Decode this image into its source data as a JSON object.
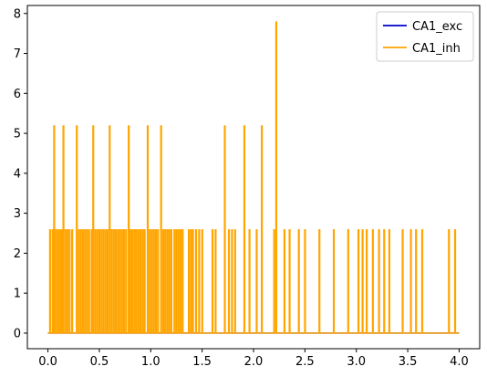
{
  "chart_data": {
    "type": "line",
    "title": "",
    "xlabel": "",
    "ylabel": "",
    "xlim": [
      -0.2,
      4.2
    ],
    "ylim": [
      -0.39,
      8.2
    ],
    "grid": false,
    "legend_placement": "top-right",
    "x_ticks": [
      {
        "value": 0.0,
        "label": "0.0"
      },
      {
        "value": 0.5,
        "label": "0.5"
      },
      {
        "value": 1.0,
        "label": "1.0"
      },
      {
        "value": 1.5,
        "label": "1.5"
      },
      {
        "value": 2.0,
        "label": "2.0"
      },
      {
        "value": 2.5,
        "label": "2.5"
      },
      {
        "value": 3.0,
        "label": "3.0"
      },
      {
        "value": 3.5,
        "label": "3.5"
      },
      {
        "value": 4.0,
        "label": "4.0"
      }
    ],
    "y_ticks": [
      {
        "value": 0,
        "label": "0"
      },
      {
        "value": 1,
        "label": "1"
      },
      {
        "value": 2,
        "label": "2"
      },
      {
        "value": 3,
        "label": "3"
      },
      {
        "value": 4,
        "label": "4"
      },
      {
        "value": 5,
        "label": "5"
      },
      {
        "value": 6,
        "label": "6"
      },
      {
        "value": 7,
        "label": "7"
      },
      {
        "value": 8,
        "label": "8"
      }
    ],
    "series": [
      {
        "name": "CA1_exc",
        "color": "#0000cd",
        "x": [
          0.0,
          4.0
        ],
        "y": [
          0,
          0
        ]
      },
      {
        "name": "CA1_inh",
        "color": "#ffa500",
        "baseline": 0,
        "x_start": 0.0,
        "x_end": 4.0,
        "spikes": [
          {
            "x": 0.02,
            "y": 2.6
          },
          {
            "x": 0.045,
            "y": 2.6
          },
          {
            "x": 0.06,
            "y": 5.2
          },
          {
            "x": 0.08,
            "y": 2.6
          },
          {
            "x": 0.1,
            "y": 2.6
          },
          {
            "x": 0.12,
            "y": 2.6
          },
          {
            "x": 0.135,
            "y": 2.6
          },
          {
            "x": 0.15,
            "y": 5.2
          },
          {
            "x": 0.17,
            "y": 2.6
          },
          {
            "x": 0.19,
            "y": 2.6
          },
          {
            "x": 0.21,
            "y": 2.6
          },
          {
            "x": 0.235,
            "y": 2.6
          },
          {
            "x": 0.28,
            "y": 5.2
          },
          {
            "x": 0.3,
            "y": 2.6
          },
          {
            "x": 0.32,
            "y": 2.6
          },
          {
            "x": 0.34,
            "y": 2.6
          },
          {
            "x": 0.36,
            "y": 2.6
          },
          {
            "x": 0.38,
            "y": 2.6
          },
          {
            "x": 0.4,
            "y": 2.6
          },
          {
            "x": 0.425,
            "y": 2.6
          },
          {
            "x": 0.44,
            "y": 5.2
          },
          {
            "x": 0.46,
            "y": 2.6
          },
          {
            "x": 0.48,
            "y": 2.6
          },
          {
            "x": 0.5,
            "y": 2.6
          },
          {
            "x": 0.52,
            "y": 2.6
          },
          {
            "x": 0.54,
            "y": 2.6
          },
          {
            "x": 0.56,
            "y": 2.6
          },
          {
            "x": 0.58,
            "y": 2.6
          },
          {
            "x": 0.6,
            "y": 5.2
          },
          {
            "x": 0.62,
            "y": 2.6
          },
          {
            "x": 0.64,
            "y": 2.6
          },
          {
            "x": 0.66,
            "y": 2.6
          },
          {
            "x": 0.68,
            "y": 2.6
          },
          {
            "x": 0.7,
            "y": 2.6
          },
          {
            "x": 0.72,
            "y": 2.6
          },
          {
            "x": 0.74,
            "y": 2.6
          },
          {
            "x": 0.76,
            "y": 2.6
          },
          {
            "x": 0.785,
            "y": 5.2
          },
          {
            "x": 0.8,
            "y": 2.6
          },
          {
            "x": 0.82,
            "y": 2.6
          },
          {
            "x": 0.84,
            "y": 2.6
          },
          {
            "x": 0.86,
            "y": 2.6
          },
          {
            "x": 0.88,
            "y": 2.6
          },
          {
            "x": 0.9,
            "y": 2.6
          },
          {
            "x": 0.92,
            "y": 2.6
          },
          {
            "x": 0.94,
            "y": 2.6
          },
          {
            "x": 0.97,
            "y": 5.2
          },
          {
            "x": 0.99,
            "y": 2.6
          },
          {
            "x": 1.01,
            "y": 2.6
          },
          {
            "x": 1.03,
            "y": 2.6
          },
          {
            "x": 1.05,
            "y": 2.6
          },
          {
            "x": 1.07,
            "y": 2.6
          },
          {
            "x": 1.1,
            "y": 5.2
          },
          {
            "x": 1.12,
            "y": 2.6
          },
          {
            "x": 1.14,
            "y": 2.6
          },
          {
            "x": 1.16,
            "y": 2.6
          },
          {
            "x": 1.18,
            "y": 2.6
          },
          {
            "x": 1.2,
            "y": 2.6
          },
          {
            "x": 1.23,
            "y": 2.6
          },
          {
            "x": 1.25,
            "y": 2.6
          },
          {
            "x": 1.27,
            "y": 2.6
          },
          {
            "x": 1.29,
            "y": 2.6
          },
          {
            "x": 1.31,
            "y": 2.6
          },
          {
            "x": 1.37,
            "y": 2.6
          },
          {
            "x": 1.39,
            "y": 2.6
          },
          {
            "x": 1.41,
            "y": 2.6
          },
          {
            "x": 1.44,
            "y": 2.6
          },
          {
            "x": 1.47,
            "y": 2.6
          },
          {
            "x": 1.5,
            "y": 2.6
          },
          {
            "x": 1.6,
            "y": 2.6
          },
          {
            "x": 1.63,
            "y": 2.6
          },
          {
            "x": 1.72,
            "y": 5.2
          },
          {
            "x": 1.76,
            "y": 2.6
          },
          {
            "x": 1.79,
            "y": 2.6
          },
          {
            "x": 1.82,
            "y": 2.6
          },
          {
            "x": 1.91,
            "y": 5.2
          },
          {
            "x": 1.96,
            "y": 2.6
          },
          {
            "x": 2.03,
            "y": 2.6
          },
          {
            "x": 2.08,
            "y": 5.2
          },
          {
            "x": 2.2,
            "y": 2.6
          },
          {
            "x": 2.22,
            "y": 7.8
          },
          {
            "x": 2.3,
            "y": 2.6
          },
          {
            "x": 2.35,
            "y": 2.6
          },
          {
            "x": 2.44,
            "y": 2.6
          },
          {
            "x": 2.5,
            "y": 2.6
          },
          {
            "x": 2.64,
            "y": 2.6
          },
          {
            "x": 2.78,
            "y": 2.6
          },
          {
            "x": 2.92,
            "y": 2.6
          },
          {
            "x": 3.02,
            "y": 2.6
          },
          {
            "x": 3.06,
            "y": 2.6
          },
          {
            "x": 3.1,
            "y": 2.6
          },
          {
            "x": 3.16,
            "y": 2.6
          },
          {
            "x": 3.22,
            "y": 2.6
          },
          {
            "x": 3.27,
            "y": 2.6
          },
          {
            "x": 3.32,
            "y": 2.6
          },
          {
            "x": 3.45,
            "y": 2.6
          },
          {
            "x": 3.53,
            "y": 2.6
          },
          {
            "x": 3.58,
            "y": 2.6
          },
          {
            "x": 3.64,
            "y": 2.6
          },
          {
            "x": 3.9,
            "y": 2.6
          },
          {
            "x": 3.96,
            "y": 2.6
          }
        ]
      }
    ]
  }
}
